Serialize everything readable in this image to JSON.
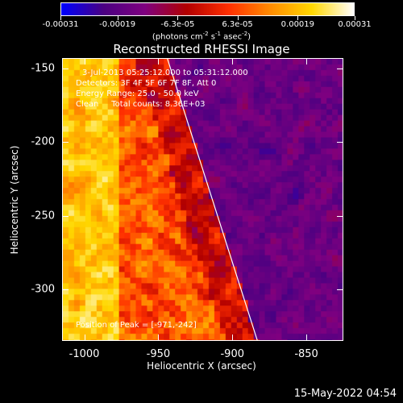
{
  "colorbar": {
    "tick_labels": [
      "-0.00031",
      "-0.00019",
      "-6.3e-05",
      "6.3e-05",
      "0.00019",
      "0.00031"
    ],
    "tick_values": [
      -0.00031,
      -0.00019,
      -6.3e-05,
      6.3e-05,
      0.00019,
      0.00031
    ],
    "range": [
      -0.00031,
      0.00031
    ],
    "units_prefix": "(photons cm",
    "units_exp1": "-2",
    "units_mid1": " s",
    "units_exp2": "-1",
    "units_mid2": " asec",
    "units_exp3": "-2",
    "units_suffix": ")",
    "colors": [
      "#0000ff",
      "#4b0082",
      "#800080",
      "#b20000",
      "#ff3000",
      "#ff8c00",
      "#ffd800",
      "#ffffff"
    ]
  },
  "title": "Reconstructed RHESSI Image",
  "info": {
    "time_range": "3-Jul-2013 05:25:12.000 to 05:31:12.000",
    "detectors": "Detectors: 3F 4F 5F 6F 7F 8F, Att 0",
    "energy": "Energy Range: 25.0 - 50.0 keV",
    "clean": "Clean     Total counts: 8.36E+03"
  },
  "peak": "Position of Peak = [-971,-242]",
  "footer_date": "15-May-2022 04:54",
  "chart_data": {
    "type": "heatmap",
    "title": "Reconstructed RHESSI Image",
    "xlabel": "Heliocentric X (arcsec)",
    "ylabel": "Heliocentric Y (arcsec)",
    "xlim": [
      -1015,
      -825
    ],
    "ylim": [
      -335,
      -143
    ],
    "x_ticks": [
      -1000,
      -950,
      -900,
      -850
    ],
    "x_tick_labels": [
      "-1000",
      "-950",
      "-900",
      "-850"
    ],
    "y_ticks": [
      -300,
      -250,
      -200,
      -150
    ],
    "y_tick_labels": [
      "-300",
      "-250",
      "-200",
      "-150"
    ],
    "value_range": [
      -0.00031,
      0.00031
    ],
    "peak_position": [
      -971,
      -242
    ],
    "limb_line": [
      [
        -944,
        -143
      ],
      [
        -883,
        -335
      ]
    ]
  }
}
